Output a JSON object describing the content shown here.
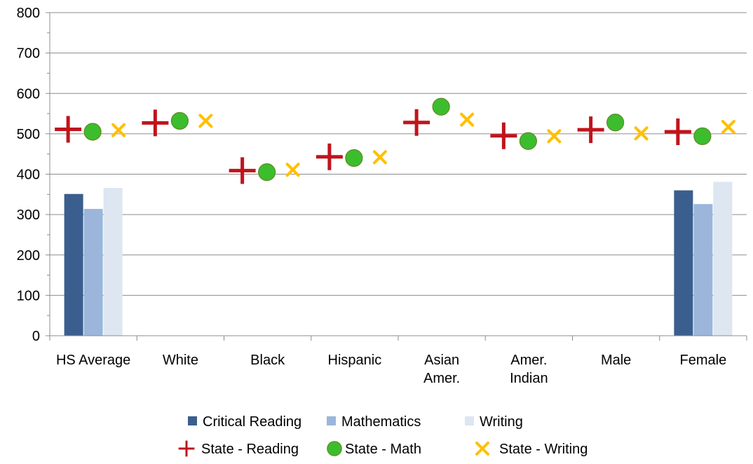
{
  "chart_data": {
    "type": "bar",
    "categories": [
      [
        "HS Average"
      ],
      [
        "White"
      ],
      [
        "Black"
      ],
      [
        "Hispanic"
      ],
      [
        "Asian",
        "Amer."
      ],
      [
        "Amer.",
        "Indian"
      ],
      [
        "Male"
      ],
      [
        "Female"
      ]
    ],
    "ylim": [
      0,
      800
    ],
    "y_ticks": [
      "0",
      "100",
      "200",
      "300",
      "400",
      "500",
      "600",
      "700",
      "800"
    ],
    "grid": true,
    "legend_position": "bottom",
    "bar_series": [
      {
        "name": "Critical Reading",
        "color": "#3a5f8e",
        "values": [
          351,
          null,
          null,
          null,
          null,
          null,
          null,
          360
        ]
      },
      {
        "name": "Mathematics",
        "color": "#9bb6da",
        "values": [
          314,
          null,
          null,
          null,
          null,
          null,
          null,
          326
        ]
      },
      {
        "name": "Writing",
        "color": "#dde6f1",
        "values": [
          366,
          null,
          null,
          null,
          null,
          null,
          null,
          381
        ]
      }
    ],
    "marker_series": [
      {
        "name": "State - Reading",
        "marker": "plus",
        "color": "#c0141c",
        "values": [
          511,
          527,
          409,
          443,
          528,
          495,
          510,
          505
        ]
      },
      {
        "name": "State - Math",
        "marker": "circle",
        "color": "#3cbd2e",
        "values": [
          505,
          532,
          405,
          440,
          567,
          482,
          528,
          494
        ]
      },
      {
        "name": "State - Writing",
        "marker": "x",
        "color": "#ffc000",
        "values": [
          509,
          532,
          411,
          442,
          535,
          494,
          501,
          517
        ]
      }
    ]
  }
}
